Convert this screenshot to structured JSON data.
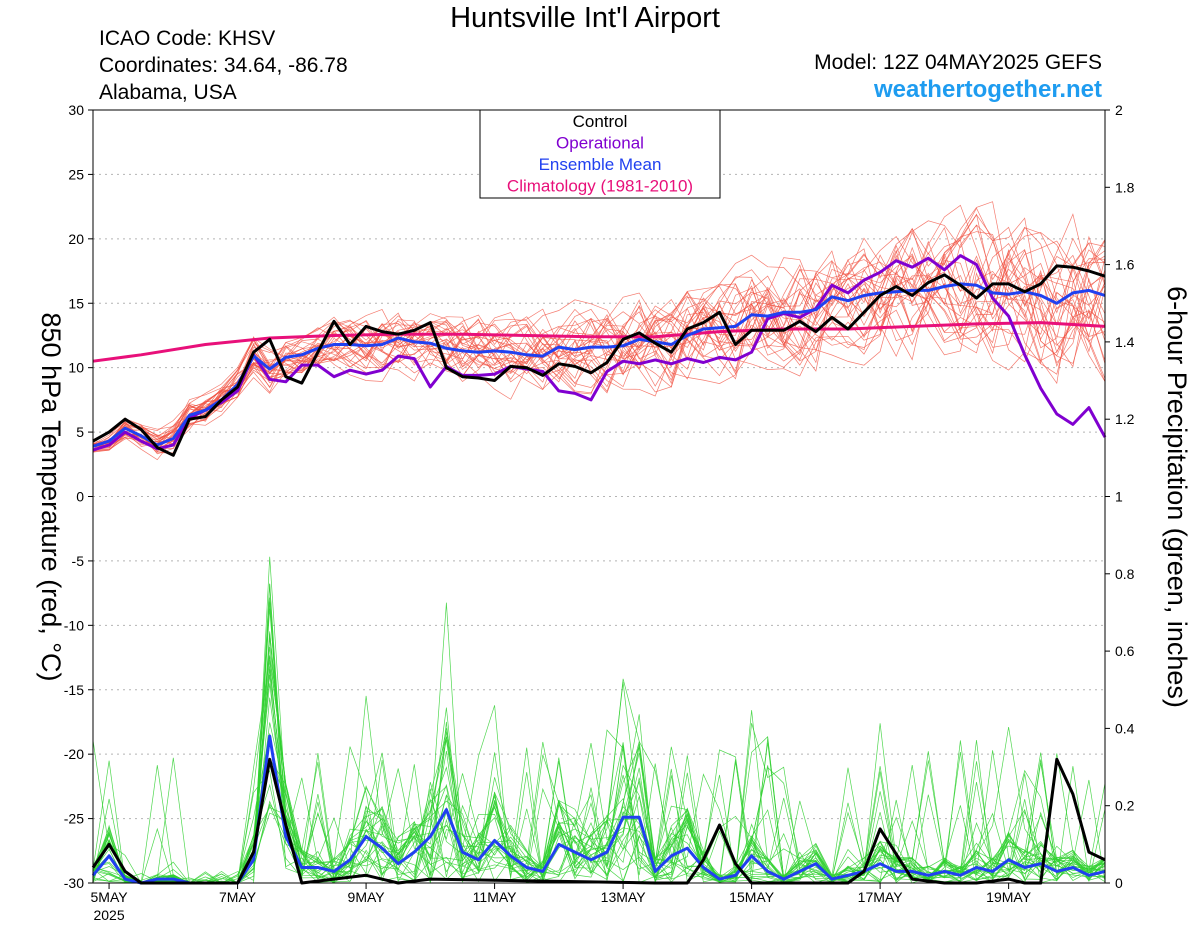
{
  "header": {
    "title": "Huntsville Int'l Airport",
    "icao": "ICAO Code: KHSV",
    "coordinates": "Coordinates: 34.64, -86.78",
    "region": "Alabama, USA",
    "model": "Model: 12Z 04MAY2025 GEFS",
    "site": "weathertogether.net"
  },
  "colors": {
    "control": "#000000",
    "operational": "#8000d0",
    "ensemble_mean": "#2040f0",
    "climatology": "#e8107a",
    "members_temp": "#f05040",
    "members_precip": "#30d030",
    "site": "#1e9cf0"
  },
  "chart_data": {
    "type": "line",
    "ylabel_left": "850 hPa Temperature (red, °C)",
    "ylabel_right": "6-hour Precipitation (green, inches)",
    "y_left_range": [
      -30,
      30
    ],
    "y_left_ticks": [
      30,
      25,
      20,
      15,
      10,
      5,
      0,
      -5,
      -10,
      -15,
      -20,
      -25,
      -30
    ],
    "y_right_range": [
      0,
      2
    ],
    "y_right_ticks": [
      "2",
      "1.8",
      "1.6",
      "1.4",
      "1.2",
      "1",
      "0.8",
      "0.6",
      "0.4",
      "0.2",
      "0"
    ],
    "x_range_days": [
      4.75,
      20.5
    ],
    "x_ticks": [
      {
        "day": 5,
        "label": "5MAY",
        "sub": "2025"
      },
      {
        "day": 7,
        "label": "7MAY",
        "sub": ""
      },
      {
        "day": 9,
        "label": "9MAY",
        "sub": ""
      },
      {
        "day": 11,
        "label": "11MAY",
        "sub": ""
      },
      {
        "day": 13,
        "label": "13MAY",
        "sub": ""
      },
      {
        "day": 15,
        "label": "15MAY",
        "sub": ""
      },
      {
        "day": 17,
        "label": "17MAY",
        "sub": ""
      },
      {
        "day": 19,
        "label": "19MAY",
        "sub": ""
      }
    ],
    "grid": true,
    "legend_placement": "top-center",
    "legend": [
      {
        "key": "control",
        "label": "Control"
      },
      {
        "key": "operational",
        "label": "Operational"
      },
      {
        "key": "ensemble_mean",
        "label": "Ensemble Mean"
      },
      {
        "key": "climatology",
        "label": "Climatology (1981-2010)"
      }
    ],
    "temperature_series": {
      "climatology": {
        "x": [
          4.75,
          5.5,
          6.5,
          7.5,
          8.5,
          9.5,
          10.5,
          11.5,
          12.5,
          13.5,
          14.5,
          15.5,
          16.5,
          17.5,
          18.5,
          19.5,
          20.5
        ],
        "y": [
          10.5,
          11.0,
          11.8,
          12.3,
          12.5,
          12.6,
          12.6,
          12.5,
          12.4,
          12.4,
          12.8,
          13.0,
          13.0,
          13.2,
          13.4,
          13.5,
          13.2
        ]
      },
      "control": {
        "x": [
          4.75,
          5.0,
          5.25,
          5.5,
          5.75,
          6.0,
          6.25,
          6.5,
          6.75,
          7.0,
          7.25,
          7.5,
          7.75,
          8.0,
          8.25,
          8.5,
          8.75,
          9.0,
          9.25,
          9.5,
          9.75,
          10.0,
          10.25,
          10.5,
          10.75,
          11.0,
          11.25,
          11.5,
          11.75,
          12.0,
          12.25,
          12.5,
          12.75,
          13.0,
          13.25,
          13.5,
          13.75,
          14.0,
          14.25,
          14.5,
          14.75,
          15.0,
          15.25,
          15.5,
          15.75,
          16.0,
          16.25,
          16.5,
          16.75,
          17.0,
          17.25,
          17.5,
          17.75,
          18.0,
          18.25,
          18.5,
          18.75,
          19.0,
          19.25,
          19.5,
          19.75,
          20.0,
          20.25,
          20.5
        ],
        "y": [
          4.3,
          5.0,
          6.0,
          5.2,
          3.8,
          3.2,
          6.0,
          6.2,
          7.5,
          8.5,
          11.2,
          12.2,
          9.3,
          8.8,
          11.2,
          13.6,
          11.8,
          13.2,
          12.8,
          12.6,
          12.9,
          13.5,
          10.0,
          9.3,
          9.2,
          9.0,
          10.1,
          10.0,
          9.4,
          10.3,
          10.1,
          9.6,
          10.4,
          12.2,
          12.7,
          11.9,
          11.2,
          13.0,
          13.5,
          14.3,
          11.8,
          12.9,
          12.9,
          12.9,
          13.6,
          12.8,
          13.9,
          13.0,
          14.3,
          15.6,
          16.3,
          15.6,
          16.6,
          17.2,
          16.4,
          15.4,
          16.5,
          16.5,
          15.9,
          16.5,
          17.9,
          17.8,
          17.5,
          17.1
        ]
      },
      "operational": {
        "x": [
          4.75,
          5.0,
          5.25,
          5.5,
          5.75,
          6.0,
          6.25,
          6.5,
          6.75,
          7.0,
          7.25,
          7.5,
          7.75,
          8.0,
          8.25,
          8.5,
          8.75,
          9.0,
          9.25,
          9.5,
          9.75,
          10.0,
          10.25,
          10.5,
          10.75,
          11.0,
          11.25,
          11.5,
          11.75,
          12.0,
          12.25,
          12.5,
          12.75,
          13.0,
          13.25,
          13.5,
          13.75,
          14.0,
          14.25,
          14.5,
          14.75,
          15.0,
          15.25,
          15.5,
          15.75,
          16.0,
          16.25,
          16.5,
          16.75,
          17.0,
          17.25,
          17.5,
          17.75,
          18.0,
          18.25,
          18.5,
          18.75,
          19.0,
          19.25,
          19.5,
          19.75,
          20.0,
          20.25,
          20.5
        ],
        "y": [
          3.6,
          4.0,
          5.0,
          4.3,
          3.7,
          4.0,
          6.1,
          6.7,
          7.3,
          8.2,
          11.0,
          9.1,
          8.9,
          10.2,
          10.2,
          9.3,
          9.8,
          9.5,
          9.8,
          10.9,
          10.7,
          8.5,
          10.1,
          9.4,
          9.4,
          9.5,
          10.1,
          9.9,
          9.7,
          8.2,
          8.0,
          7.5,
          9.7,
          10.5,
          10.3,
          10.6,
          10.3,
          10.7,
          10.4,
          10.8,
          10.6,
          11.2,
          13.8,
          14.2,
          13.9,
          14.6,
          16.4,
          15.8,
          16.8,
          17.4,
          18.3,
          17.8,
          18.5,
          17.6,
          18.7,
          18.0,
          15.4,
          14.0,
          11.0,
          8.4,
          6.4,
          5.6,
          6.9,
          4.6
        ]
      },
      "ensemble_mean": {
        "x": [
          4.75,
          5.0,
          5.25,
          5.5,
          5.75,
          6.0,
          6.25,
          6.5,
          6.75,
          7.0,
          7.25,
          7.5,
          7.75,
          8.0,
          8.25,
          8.5,
          8.75,
          9.0,
          9.25,
          9.5,
          9.75,
          10.0,
          10.25,
          10.5,
          10.75,
          11.0,
          11.25,
          11.5,
          11.75,
          12.0,
          12.25,
          12.5,
          12.75,
          13.0,
          13.25,
          13.5,
          13.75,
          14.0,
          14.25,
          14.5,
          14.75,
          15.0,
          15.25,
          15.5,
          15.75,
          16.0,
          16.25,
          16.5,
          16.75,
          17.0,
          17.25,
          17.5,
          17.75,
          18.0,
          18.25,
          18.5,
          18.75,
          19.0,
          19.25,
          19.5,
          19.75,
          20.0,
          20.25,
          20.5
        ],
        "y": [
          3.9,
          4.3,
          5.3,
          4.7,
          4.0,
          4.5,
          6.3,
          6.7,
          7.5,
          8.7,
          10.9,
          9.9,
          10.8,
          11.0,
          11.5,
          11.8,
          11.8,
          11.7,
          11.8,
          12.3,
          12.0,
          11.9,
          11.5,
          11.3,
          11.2,
          11.3,
          11.2,
          11.0,
          10.9,
          11.6,
          11.4,
          11.6,
          11.6,
          11.7,
          12.2,
          12.0,
          11.8,
          12.5,
          13.0,
          13.1,
          13.2,
          14.1,
          14.0,
          14.3,
          14.3,
          14.5,
          15.5,
          15.2,
          15.6,
          15.8,
          15.9,
          16.0,
          16.0,
          16.3,
          16.5,
          16.4,
          15.8,
          15.7,
          15.9,
          15.6,
          15.0,
          15.8,
          16.0,
          15.6
        ]
      }
    },
    "temperature_members_note": "30 GEFS member traces drawn in light red, spread around the ensemble mean",
    "precipitation_series": {
      "control": {
        "x": [
          4.75,
          5.0,
          5.25,
          5.5,
          6.0,
          6.5,
          7.0,
          7.25,
          7.5,
          7.75,
          8.0,
          9.0,
          9.5,
          10.0,
          13.5,
          14.0,
          14.25,
          14.5,
          14.75,
          15.0,
          15.5,
          16.0,
          16.5,
          16.75,
          17.0,
          17.5,
          18.0,
          18.5,
          19.0,
          19.25,
          19.5,
          19.75,
          20.0,
          20.25,
          20.5
        ],
        "y": [
          0.04,
          0.1,
          0.03,
          0.0,
          0.0,
          0.0,
          0.0,
          0.08,
          0.32,
          0.15,
          0.0,
          0.02,
          0.0,
          0.01,
          0.0,
          0.0,
          0.06,
          0.15,
          0.05,
          0.0,
          0.0,
          0.0,
          0.0,
          0.03,
          0.14,
          0.01,
          0.0,
          0.0,
          0.01,
          0.0,
          0.0,
          0.32,
          0.23,
          0.08,
          0.06
        ]
      },
      "ensemble_mean": {
        "x": [
          4.75,
          5.0,
          5.25,
          5.5,
          5.75,
          6.0,
          6.25,
          6.5,
          6.75,
          7.0,
          7.25,
          7.5,
          7.75,
          8.0,
          8.25,
          8.5,
          8.75,
          9.0,
          9.25,
          9.5,
          9.75,
          10.0,
          10.25,
          10.5,
          10.75,
          11.0,
          11.25,
          11.5,
          11.75,
          12.0,
          12.25,
          12.5,
          12.75,
          13.0,
          13.25,
          13.5,
          13.75,
          14.0,
          14.25,
          14.5,
          14.75,
          15.0,
          15.25,
          15.5,
          15.75,
          16.0,
          16.25,
          16.5,
          16.75,
          17.0,
          17.25,
          17.5,
          17.75,
          18.0,
          18.25,
          18.5,
          18.75,
          19.0,
          19.25,
          19.5,
          19.75,
          20.0,
          20.25,
          20.5
        ],
        "y": [
          0.02,
          0.07,
          0.01,
          0.0,
          0.01,
          0.01,
          0.0,
          0.0,
          0.0,
          0.0,
          0.06,
          0.38,
          0.12,
          0.04,
          0.04,
          0.03,
          0.06,
          0.12,
          0.09,
          0.05,
          0.08,
          0.12,
          0.19,
          0.08,
          0.06,
          0.11,
          0.07,
          0.04,
          0.03,
          0.1,
          0.08,
          0.06,
          0.08,
          0.17,
          0.17,
          0.03,
          0.07,
          0.09,
          0.04,
          0.01,
          0.02,
          0.07,
          0.03,
          0.01,
          0.03,
          0.05,
          0.01,
          0.02,
          0.03,
          0.05,
          0.03,
          0.03,
          0.02,
          0.03,
          0.02,
          0.04,
          0.03,
          0.06,
          0.04,
          0.05,
          0.03,
          0.04,
          0.02,
          0.03
        ]
      }
    },
    "precipitation_members_note": "30 GEFS member traces drawn in light green"
  }
}
